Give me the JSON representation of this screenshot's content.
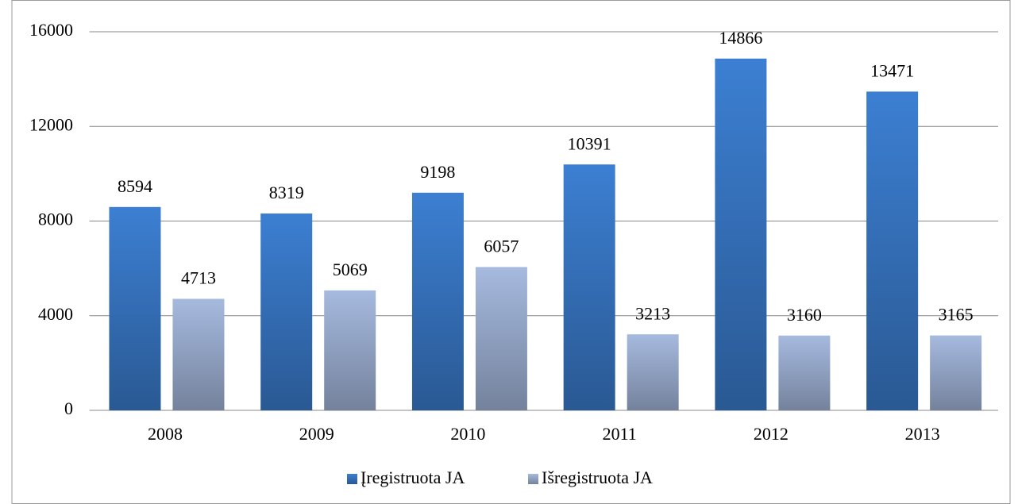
{
  "chart_data": {
    "type": "bar",
    "categories": [
      "2008",
      "2009",
      "2010",
      "2011",
      "2012",
      "2013"
    ],
    "series": [
      {
        "name": "Įregistruota JA",
        "color": "#3c7fd2",
        "values": [
          8594,
          8319,
          9198,
          10391,
          14866,
          13471
        ]
      },
      {
        "name": "Išregistruota JA",
        "color": "#a6badf",
        "values": [
          4713,
          5069,
          6057,
          3213,
          3160,
          3165
        ]
      }
    ],
    "ylim": [
      0,
      16000
    ],
    "yticks": [
      0,
      4000,
      8000,
      12000,
      16000
    ],
    "grid": true,
    "legend": "bottom"
  }
}
